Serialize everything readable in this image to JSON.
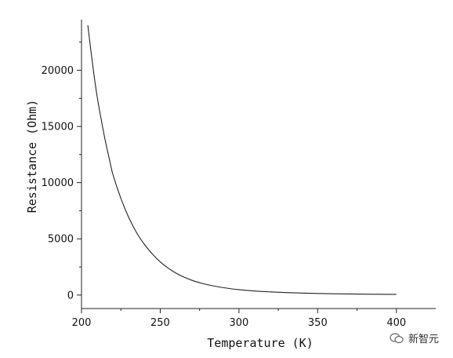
{
  "chart_data": {
    "type": "line",
    "title": "",
    "xlabel": "Temperature (K)",
    "ylabel": "Resistance (Ohm)",
    "xlim": [
      200,
      425
    ],
    "ylim": [
      -1200,
      24500
    ],
    "x_ticks": [
      200,
      250,
      300,
      350,
      400
    ],
    "y_ticks": [
      0,
      5000,
      10000,
      15000,
      20000
    ],
    "grid": false,
    "legend": "none",
    "line_color": "#222222",
    "series": [
      {
        "x": [
          204,
          206,
          208,
          210,
          212,
          215,
          218,
          220,
          225,
          230,
          235,
          240,
          245,
          250,
          255,
          260,
          265,
          270,
          275,
          280,
          290,
          300,
          310,
          320,
          330,
          340,
          350,
          360,
          370,
          380,
          390,
          400
        ],
        "values": [
          24000,
          21700,
          19500,
          17600,
          16000,
          13800,
          11900,
          10700,
          8600,
          6900,
          5550,
          4500,
          3650,
          2950,
          2400,
          1950,
          1600,
          1320,
          1100,
          920,
          660,
          480,
          360,
          280,
          220,
          175,
          140,
          115,
          95,
          80,
          68,
          60
        ]
      }
    ]
  },
  "watermark": {
    "text": "新智元"
  }
}
